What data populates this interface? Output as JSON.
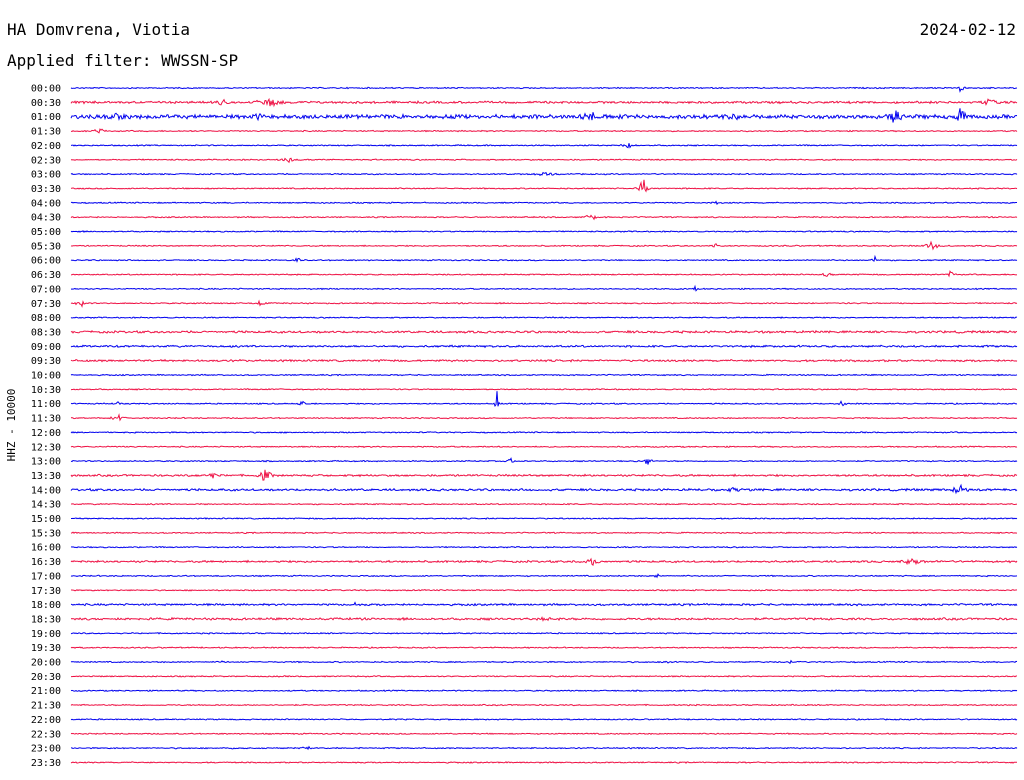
{
  "header": {
    "station": "HA Domvrena, Viotia",
    "date": "2024-02-12",
    "filter_line": "Applied filter: WWSSN-SP"
  },
  "colors": {
    "blue": "#0000ee",
    "red": "#ee1144"
  },
  "chart_data": {
    "type": "line",
    "title": "HA Domvrena, Viotia",
    "date": "2024-02-12",
    "ylabel": "HHZ - 10000",
    "ytick_labels": [
      "00:00",
      "00:30",
      "01:00",
      "01:30",
      "02:00",
      "02:30",
      "03:00",
      "03:30",
      "04:00",
      "04:30",
      "05:00",
      "05:30",
      "06:00",
      "06:30",
      "07:00",
      "07:30",
      "08:00",
      "08:30",
      "09:00",
      "09:30",
      "10:00",
      "10:30",
      "11:00",
      "11:30",
      "12:00",
      "12:30",
      "13:00",
      "13:30",
      "14:00",
      "14:30",
      "15:00",
      "15:30",
      "16:00",
      "16:30",
      "17:00",
      "17:30",
      "18:00",
      "18:30",
      "19:00",
      "19:30",
      "20:00",
      "20:30",
      "21:00",
      "21:30",
      "22:00",
      "22:30",
      "23:00",
      "23:30"
    ],
    "trace_colors": [
      "#0000ee",
      "#ee1144"
    ],
    "grid": false,
    "events": [
      {
        "row": 0,
        "t": 0.94,
        "a": 4,
        "w": 0.01
      },
      {
        "row": 1,
        "t": 0.16,
        "a": 5,
        "w": 0.02
      },
      {
        "row": 1,
        "t": 0.21,
        "a": 6,
        "w": 0.03
      },
      {
        "row": 1,
        "t": 0.97,
        "a": 5,
        "w": 0.02
      },
      {
        "row": 2,
        "t": 0.05,
        "a": 5,
        "w": 0.04
      },
      {
        "row": 2,
        "t": 0.2,
        "a": 4,
        "w": 0.05
      },
      {
        "row": 2,
        "t": 0.55,
        "a": 6,
        "w": 0.03
      },
      {
        "row": 2,
        "t": 0.56,
        "a": 12,
        "w": 0.005
      },
      {
        "row": 2,
        "t": 0.7,
        "a": 6,
        "w": 0.02
      },
      {
        "row": 2,
        "t": 0.87,
        "a": 8,
        "w": 0.03
      },
      {
        "row": 2,
        "t": 0.94,
        "a": 12,
        "w": 0.015
      },
      {
        "row": 3,
        "t": 0.03,
        "a": 3,
        "w": 0.02
      },
      {
        "row": 4,
        "t": 0.59,
        "a": 5,
        "w": 0.015
      },
      {
        "row": 5,
        "t": 0.23,
        "a": 4,
        "w": 0.015
      },
      {
        "row": 6,
        "t": 0.5,
        "a": 3,
        "w": 0.03
      },
      {
        "row": 7,
        "t": 0.605,
        "a": 12,
        "w": 0.012
      },
      {
        "row": 7,
        "t": 0.96,
        "a": 3,
        "w": 0.005
      },
      {
        "row": 8,
        "t": 0.68,
        "a": 7,
        "w": 0.006
      },
      {
        "row": 9,
        "t": 0.55,
        "a": 5,
        "w": 0.015
      },
      {
        "row": 11,
        "t": 0.68,
        "a": 4,
        "w": 0.008
      },
      {
        "row": 11,
        "t": 0.91,
        "a": 7,
        "w": 0.015
      },
      {
        "row": 12,
        "t": 0.24,
        "a": 5,
        "w": 0.008
      },
      {
        "row": 12,
        "t": 0.85,
        "a": 4,
        "w": 0.008
      },
      {
        "row": 13,
        "t": 0.8,
        "a": 4,
        "w": 0.015
      },
      {
        "row": 13,
        "t": 0.93,
        "a": 5,
        "w": 0.01
      },
      {
        "row": 14,
        "t": 0.66,
        "a": 9,
        "w": 0.004
      },
      {
        "row": 15,
        "t": 0.01,
        "a": 5,
        "w": 0.01
      },
      {
        "row": 15,
        "t": 0.2,
        "a": 5,
        "w": 0.008
      },
      {
        "row": 22,
        "t": 0.05,
        "a": 3,
        "w": 0.008
      },
      {
        "row": 22,
        "t": 0.245,
        "a": 4,
        "w": 0.01
      },
      {
        "row": 22,
        "t": 0.45,
        "a": 16,
        "w": 0.004
      },
      {
        "row": 22,
        "t": 0.815,
        "a": 5,
        "w": 0.008
      },
      {
        "row": 23,
        "t": 0.05,
        "a": 4,
        "w": 0.02
      },
      {
        "row": 26,
        "t": 0.465,
        "a": 6,
        "w": 0.006
      },
      {
        "row": 26,
        "t": 0.61,
        "a": 6,
        "w": 0.01
      },
      {
        "row": 27,
        "t": 0.15,
        "a": 4,
        "w": 0.02
      },
      {
        "row": 27,
        "t": 0.205,
        "a": 9,
        "w": 0.015
      },
      {
        "row": 28,
        "t": 0.7,
        "a": 4,
        "w": 0.02
      },
      {
        "row": 28,
        "t": 0.94,
        "a": 7,
        "w": 0.02
      },
      {
        "row": 33,
        "t": 0.55,
        "a": 5,
        "w": 0.02
      },
      {
        "row": 33,
        "t": 0.89,
        "a": 4,
        "w": 0.03
      },
      {
        "row": 34,
        "t": 0.16,
        "a": 3,
        "w": 0.004
      },
      {
        "row": 34,
        "t": 0.62,
        "a": 6,
        "w": 0.006
      },
      {
        "row": 36,
        "t": 0.3,
        "a": 3,
        "w": 0.004
      },
      {
        "row": 37,
        "t": 0.5,
        "a": 3,
        "w": 0.02
      },
      {
        "row": 40,
        "t": 0.16,
        "a": 3,
        "w": 0.003
      },
      {
        "row": 40,
        "t": 0.63,
        "a": 6,
        "w": 0.005
      },
      {
        "row": 40,
        "t": 0.76,
        "a": 3,
        "w": 0.004
      },
      {
        "row": 46,
        "t": 0.17,
        "a": 3,
        "w": 0.01
      },
      {
        "row": 46,
        "t": 0.25,
        "a": 3,
        "w": 0.015
      }
    ]
  }
}
